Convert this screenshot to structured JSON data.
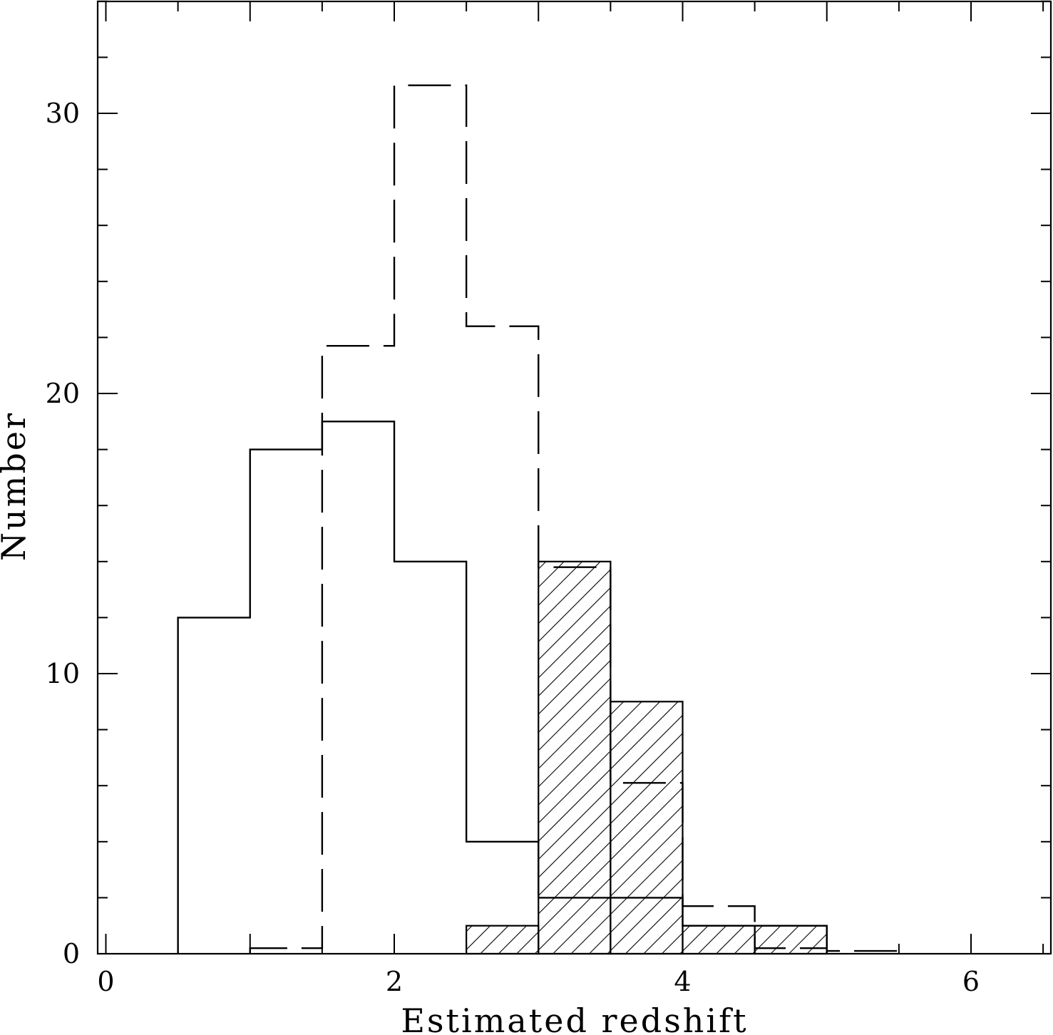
{
  "chart_data": {
    "type": "histogram",
    "xlabel": "Estimated redshift",
    "ylabel": "Number",
    "xlim": [
      -0.05,
      6.5
    ],
    "ylim": [
      0,
      34
    ],
    "xticks": {
      "major": [
        0,
        2,
        4,
        6
      ],
      "minor_step": 0.5,
      "labels": [
        "0",
        "2",
        "4",
        "6"
      ]
    },
    "yticks": {
      "major": [
        0,
        10,
        20,
        30
      ],
      "minor_step": 2,
      "labels": [
        "0",
        "10",
        "20",
        "30"
      ]
    },
    "grid": false,
    "colors": {
      "line": "#000000",
      "background": "#ffffff"
    },
    "series": [
      {
        "style": "solid",
        "bins": [
          [
            0.5,
            1.0
          ],
          [
            1.0,
            1.5
          ],
          [
            1.5,
            2.0
          ],
          [
            2.0,
            2.5
          ],
          [
            2.5,
            3.0
          ],
          [
            3.0,
            3.5
          ],
          [
            3.5,
            4.0
          ],
          [
            4.0,
            4.5
          ],
          [
            4.5,
            5.0
          ]
        ],
        "values": [
          12,
          18,
          19,
          14,
          4,
          2,
          2,
          1,
          1
        ]
      },
      {
        "style": "dashed",
        "bins": [
          [
            1.0,
            1.5
          ],
          [
            1.5,
            2.0
          ],
          [
            2.0,
            2.5
          ],
          [
            2.5,
            3.0
          ],
          [
            3.0,
            3.5
          ],
          [
            3.5,
            4.0
          ],
          [
            4.0,
            4.5
          ],
          [
            4.5,
            5.0
          ],
          [
            5.0,
            5.5
          ]
        ],
        "values": [
          0.2,
          21.7,
          31,
          22.4,
          13.8,
          6.1,
          1.7,
          0.2,
          0.1
        ]
      },
      {
        "style": "hatched",
        "bins": [
          [
            2.5,
            3.0
          ],
          [
            3.0,
            3.5
          ],
          [
            3.5,
            4.0
          ],
          [
            4.0,
            4.5
          ],
          [
            4.5,
            5.0
          ]
        ],
        "values": [
          1,
          14,
          9,
          1,
          1
        ]
      }
    ]
  }
}
